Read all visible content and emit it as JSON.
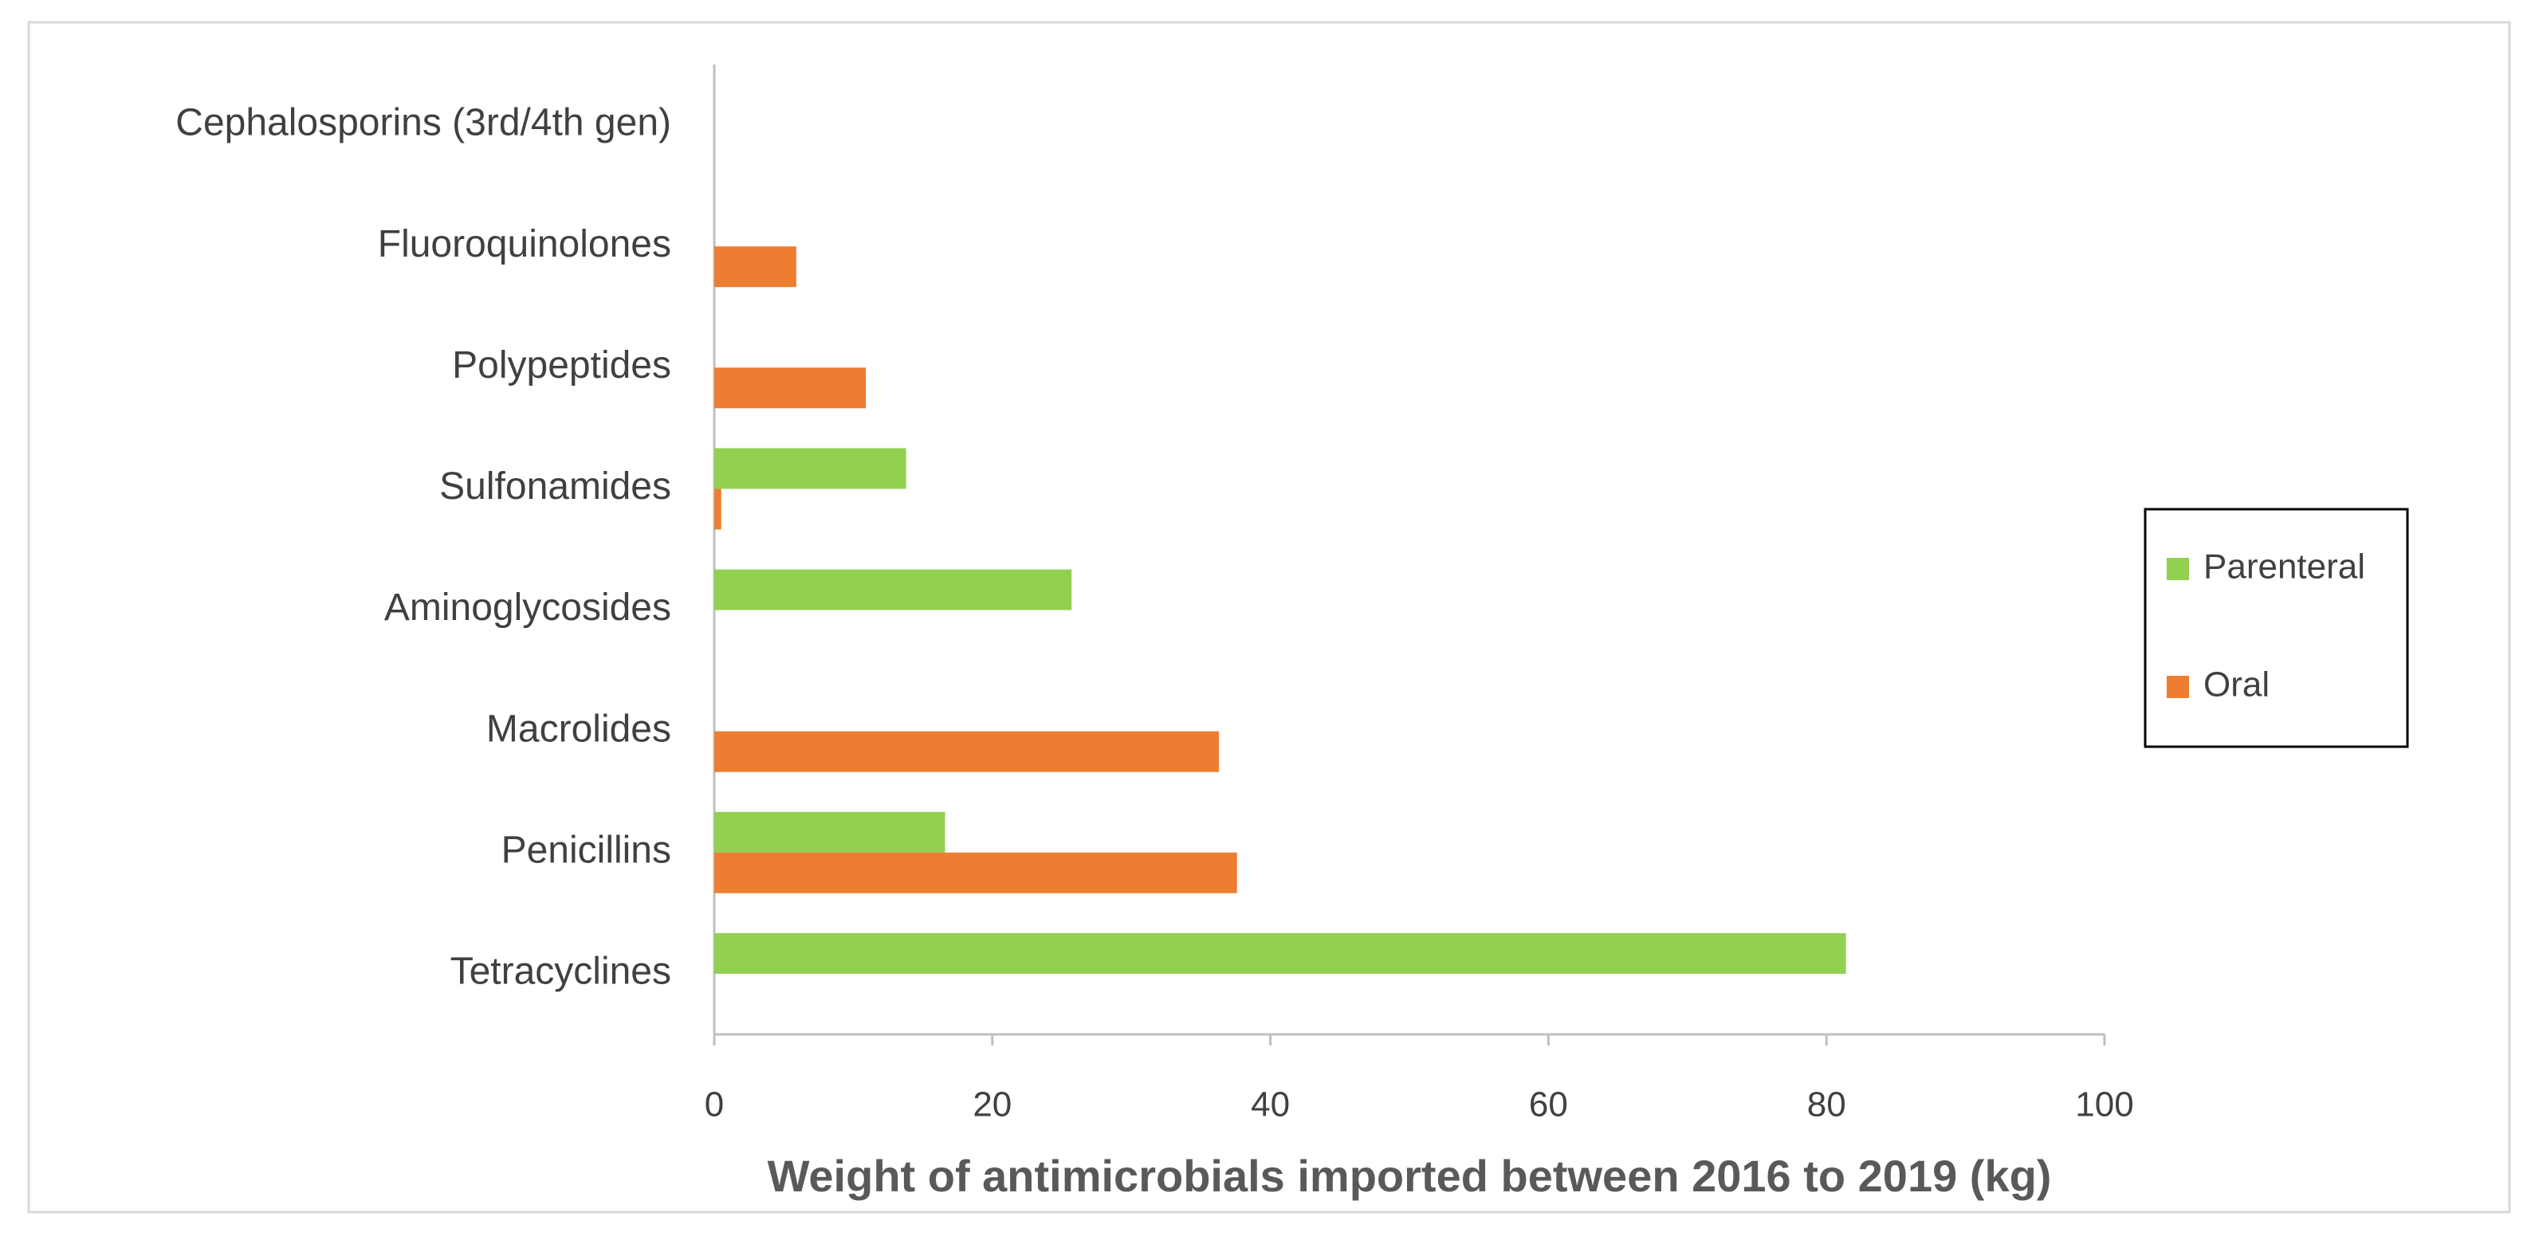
{
  "chart_data": {
    "type": "barh",
    "x_label": "Weight of antimicrobials imported between 2016 to 2019 (kg)",
    "categories": [
      "Cephalosporins (3rd/4th gen)",
      "Fluoroquinolones",
      "Polypeptides",
      "Sulfonamides",
      "Aminoglycosides",
      "Macrolides",
      "Penicillins",
      "Tetracyclines"
    ],
    "series": [
      {
        "name": "Parenteral",
        "color": "#92d050",
        "values": [
          0,
          0,
          0,
          13.8,
          25.7,
          0,
          16.6,
          81.4
        ]
      },
      {
        "name": "Oral",
        "color": "#ed7d31",
        "values": [
          0,
          5.9,
          10.9,
          0.5,
          0,
          36.3,
          37.6,
          0
        ]
      }
    ],
    "xlim": [
      0,
      100
    ],
    "xticks": [
      0,
      20,
      40,
      60,
      80,
      100
    ],
    "grid": false,
    "legend": "right"
  }
}
